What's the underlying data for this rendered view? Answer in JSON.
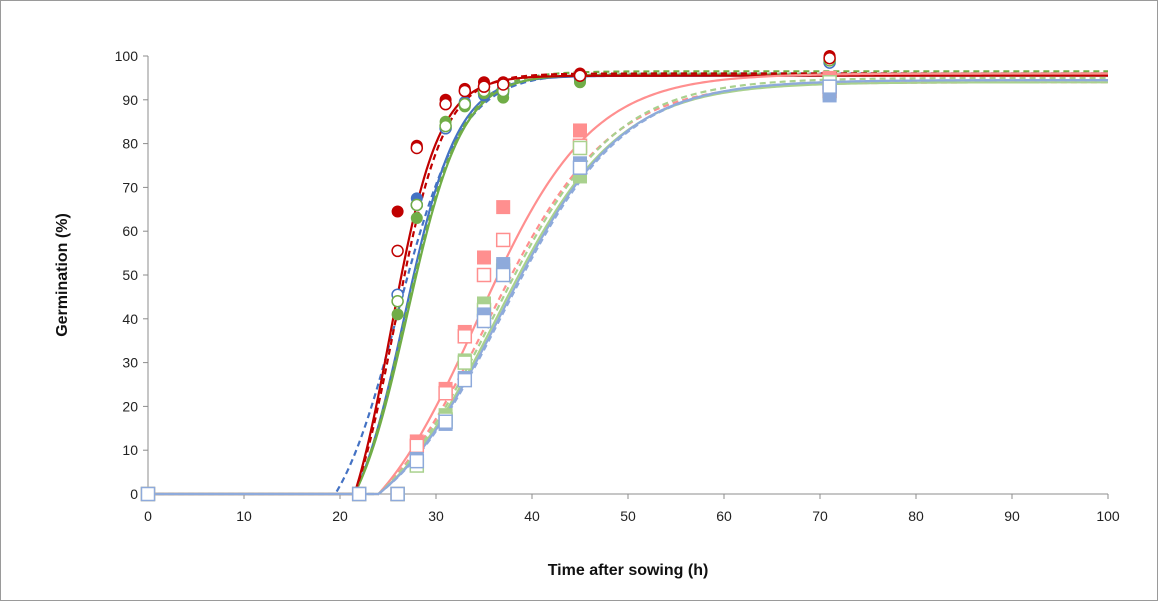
{
  "chart_data": {
    "type": "scatter",
    "title": "",
    "xlabel": "Time after sowing (h)",
    "ylabel": "Germination (%)",
    "xlim": [
      0,
      100
    ],
    "ylim": [
      0,
      100
    ],
    "xticks": [
      0,
      10,
      20,
      30,
      40,
      50,
      60,
      70,
      80,
      90,
      100
    ],
    "yticks": [
      0,
      10,
      20,
      30,
      40,
      50,
      60,
      70,
      80,
      90,
      100
    ],
    "grid": false,
    "legend": "none",
    "series": [
      {
        "marker": "circle",
        "filled": true,
        "color": "#4472c4",
        "points": [
          [
            0,
            0
          ],
          [
            22,
            0
          ],
          [
            26,
            44
          ],
          [
            28,
            67.5
          ],
          [
            31,
            84
          ],
          [
            33,
            89.5
          ],
          [
            35,
            91
          ],
          [
            37,
            91.5
          ],
          [
            45,
            94.5
          ],
          [
            71,
            99
          ]
        ],
        "curve": {
          "line": "solid",
          "max": 95.5,
          "lag": 21.5,
          "k": 0.36,
          "x50": 26.7
        }
      },
      {
        "marker": "circle",
        "filled": false,
        "color": "#4472c4",
        "points": [
          [
            0,
            0
          ],
          [
            22,
            0
          ],
          [
            26,
            45.5
          ],
          [
            28,
            66
          ],
          [
            31,
            83.5
          ],
          [
            33,
            89
          ],
          [
            35,
            91.5
          ],
          [
            37,
            92.5
          ],
          [
            45,
            95
          ],
          [
            71,
            98.5
          ]
        ],
        "curve": {
          "line": "dashed",
          "max": 96,
          "lag": 19.5,
          "k": 0.3,
          "x50": 26.0
        }
      },
      {
        "marker": "circle",
        "filled": true,
        "color": "#70ad47",
        "points": [
          [
            0,
            0
          ],
          [
            22,
            0
          ],
          [
            26,
            41
          ],
          [
            28,
            63
          ],
          [
            31,
            85
          ],
          [
            33,
            88.5
          ],
          [
            35,
            91.5
          ],
          [
            37,
            90.5
          ],
          [
            45,
            94
          ],
          [
            71,
            99.5
          ]
        ],
        "curve": {
          "line": "solid",
          "max": 95.8,
          "lag": 21.5,
          "k": 0.35,
          "x50": 27.0
        }
      },
      {
        "marker": "circle",
        "filled": false,
        "color": "#70ad47",
        "points": [
          [
            0,
            0
          ],
          [
            22,
            0
          ],
          [
            26,
            44
          ],
          [
            28,
            66
          ],
          [
            31,
            84
          ],
          [
            33,
            89
          ],
          [
            35,
            92
          ],
          [
            37,
            92
          ],
          [
            45,
            95.5
          ],
          [
            71,
            99
          ]
        ],
        "curve": {
          "line": "dashed",
          "max": 96.5,
          "lag": 21.5,
          "k": 0.34,
          "x50": 26.8
        }
      },
      {
        "marker": "circle",
        "filled": true,
        "color": "#c00000",
        "points": [
          [
            0,
            0
          ],
          [
            22,
            0
          ],
          [
            26,
            64.5
          ],
          [
            28,
            79.5
          ],
          [
            31,
            90
          ],
          [
            33,
            92.5
          ],
          [
            35,
            94
          ],
          [
            37,
            94
          ],
          [
            45,
            96
          ],
          [
            71,
            100
          ]
        ],
        "curve": {
          "line": "solid",
          "max": 95.5,
          "lag": 21.5,
          "k": 0.4,
          "x50": 25.3
        }
      },
      {
        "marker": "circle",
        "filled": false,
        "color": "#c00000",
        "points": [
          [
            0,
            0
          ],
          [
            22,
            0
          ],
          [
            26,
            55.5
          ],
          [
            28,
            79
          ],
          [
            31,
            89
          ],
          [
            33,
            92
          ],
          [
            35,
            93
          ],
          [
            37,
            93.5
          ],
          [
            45,
            95.5
          ],
          [
            71,
            99.5
          ]
        ],
        "curve": {
          "line": "dashed",
          "max": 96,
          "lag": 21.5,
          "k": 0.39,
          "x50": 25.7
        }
      },
      {
        "marker": "square",
        "filled": true,
        "color": "#ff8f8f",
        "points": [
          [
            0,
            0
          ],
          [
            22,
            0
          ],
          [
            26,
            0
          ],
          [
            28,
            12
          ],
          [
            31,
            24
          ],
          [
            33,
            37
          ],
          [
            35,
            54
          ],
          [
            37,
            65.5
          ],
          [
            45,
            83
          ],
          [
            71,
            95
          ]
        ],
        "curve": {
          "line": "solid",
          "max": 96,
          "lag": 24.0,
          "k": 0.17,
          "x50": 34.3
        }
      },
      {
        "marker": "square",
        "filled": false,
        "color": "#ff8f8f",
        "points": [
          [
            0,
            0
          ],
          [
            22,
            0
          ],
          [
            26,
            0
          ],
          [
            28,
            11
          ],
          [
            31,
            23
          ],
          [
            33,
            36
          ],
          [
            35,
            50
          ],
          [
            37,
            58
          ],
          [
            45,
            79.5
          ],
          [
            71,
            92
          ]
        ],
        "curve": {
          "line": "dashed",
          "max": 94,
          "lag": 24.0,
          "k": 0.16,
          "x50": 35.4
        }
      },
      {
        "marker": "square",
        "filled": true,
        "color": "#a9d18e",
        "points": [
          [
            0,
            0
          ],
          [
            22,
            0
          ],
          [
            26,
            0
          ],
          [
            28,
            7
          ],
          [
            31,
            18
          ],
          [
            33,
            30.5
          ],
          [
            35,
            43.5
          ],
          [
            37,
            52
          ],
          [
            45,
            72.5
          ],
          [
            71,
            91.5
          ]
        ],
        "curve": {
          "line": "solid",
          "max": 94,
          "lag": 24.0,
          "k": 0.16,
          "x50": 36.4
        }
      },
      {
        "marker": "square",
        "filled": false,
        "color": "#a9d18e",
        "points": [
          [
            0,
            0
          ],
          [
            22,
            0
          ],
          [
            26,
            0
          ],
          [
            28,
            6.5
          ],
          [
            31,
            17
          ],
          [
            33,
            30
          ],
          [
            35,
            42
          ],
          [
            37,
            51
          ],
          [
            45,
            79
          ],
          [
            71,
            94
          ]
        ],
        "curve": {
          "line": "dashed",
          "max": 95,
          "lag": 24.0,
          "k": 0.16,
          "x50": 36.0
        }
      },
      {
        "marker": "square",
        "filled": true,
        "color": "#8eaadb",
        "points": [
          [
            0,
            0
          ],
          [
            22,
            0
          ],
          [
            26,
            0
          ],
          [
            28,
            8
          ],
          [
            31,
            16
          ],
          [
            33,
            26.5
          ],
          [
            35,
            41
          ],
          [
            37,
            52.5
          ],
          [
            45,
            75.5
          ],
          [
            71,
            91
          ]
        ],
        "curve": {
          "line": "solid",
          "max": 94.5,
          "lag": 24.0,
          "k": 0.16,
          "x50": 36.8
        }
      },
      {
        "marker": "square",
        "filled": false,
        "color": "#8eaadb",
        "points": [
          [
            0,
            0
          ],
          [
            22,
            0
          ],
          [
            26,
            0
          ],
          [
            28,
            7.5
          ],
          [
            31,
            16.5
          ],
          [
            33,
            26
          ],
          [
            35,
            39.5
          ],
          [
            37,
            50
          ],
          [
            45,
            74.5
          ],
          [
            71,
            93
          ]
        ],
        "curve": {
          "line": "dashed",
          "max": 94.5,
          "lag": 24.0,
          "k": 0.16,
          "x50": 37.0
        }
      }
    ]
  }
}
